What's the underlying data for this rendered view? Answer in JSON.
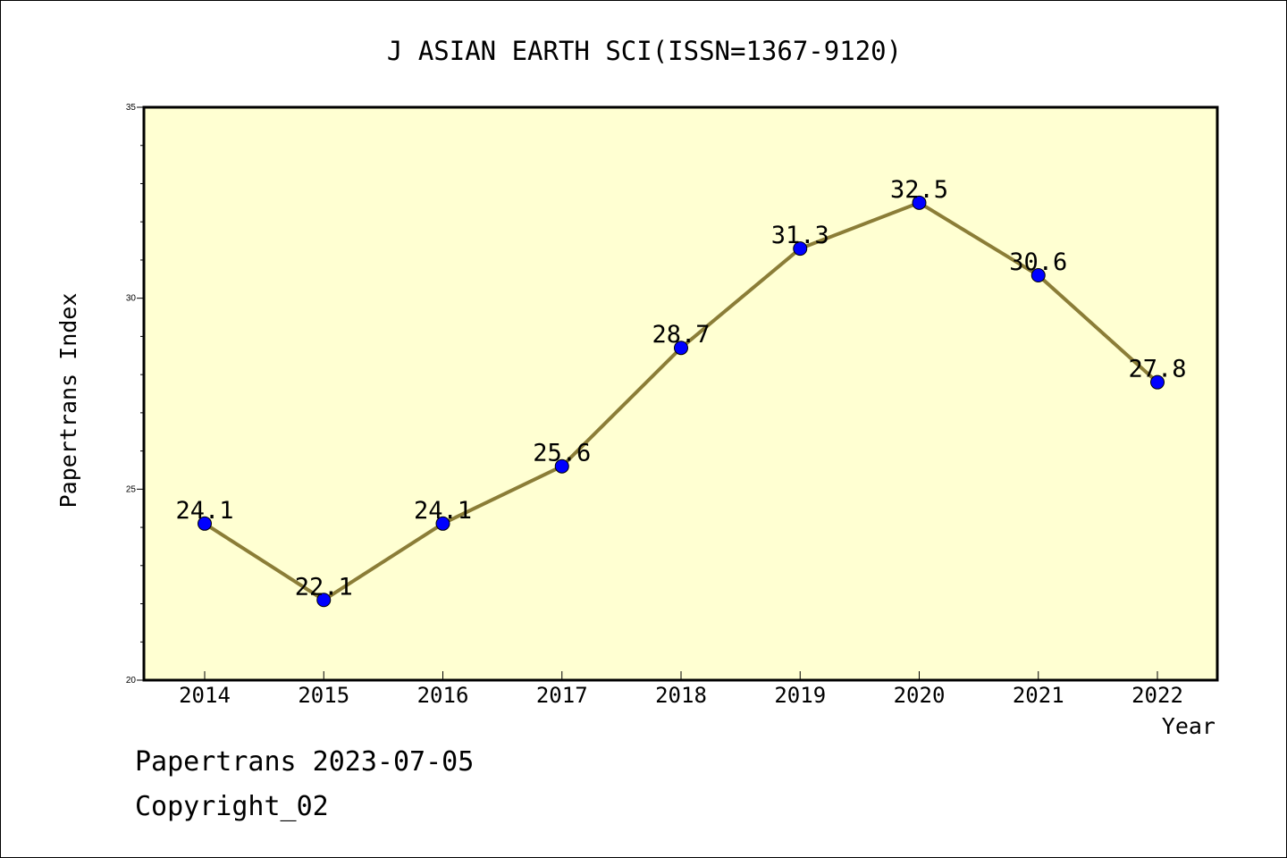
{
  "chart_data": {
    "type": "line",
    "title": "J ASIAN EARTH SCI(ISSN=1367-9120)",
    "xlabel": "Year",
    "ylabel": "Papertrans Index",
    "ylim": [
      20,
      35
    ],
    "yticks": [
      "20",
      "25",
      "30",
      "35"
    ],
    "grid": false,
    "legend": "none",
    "x": [
      "2014",
      "2015",
      "2016",
      "2017",
      "2018",
      "2019",
      "2020",
      "2021",
      "2022"
    ],
    "series": [
      {
        "values": [
          24.1,
          22.1,
          24.1,
          25.6,
          28.7,
          31.3,
          32.5,
          30.6,
          27.8
        ],
        "labels": [
          "24.1",
          "22.1",
          "24.1",
          "25.6",
          "28.7",
          "31.3",
          "32.5",
          "30.6",
          "27.8"
        ],
        "line_color": "#8b7d37",
        "marker_color": "#0000ff"
      }
    ],
    "plot_background": "#ffffd2"
  },
  "footer": {
    "line1": "Papertrans 2023-07-05",
    "line2": "Copyright_02"
  }
}
